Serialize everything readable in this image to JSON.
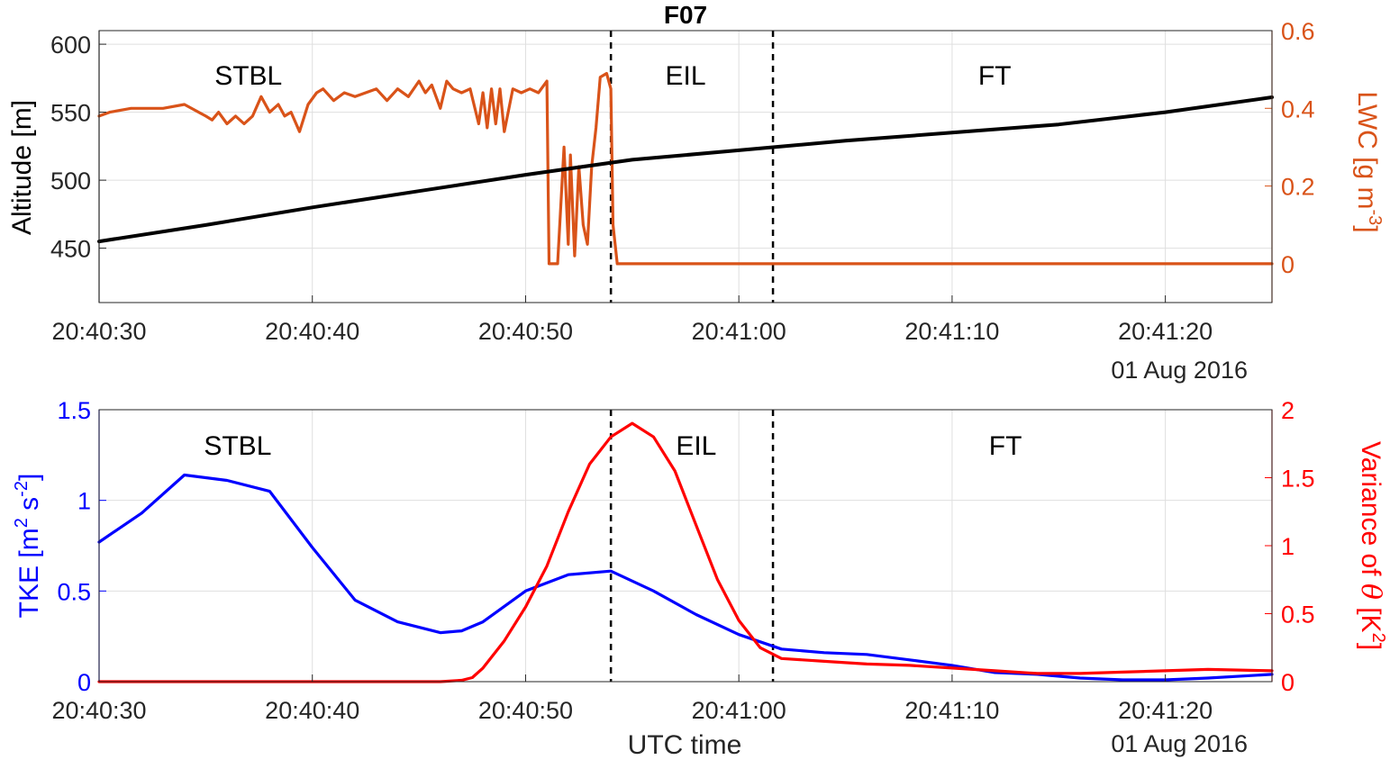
{
  "title": "F07",
  "chart_data": [
    {
      "type": "line",
      "x_ticks": [
        "20:40:30",
        "20:40:40",
        "20:40:50",
        "20:41:00",
        "20:41:10",
        "20:41:20"
      ],
      "date_label": "01 Aug 2016",
      "xlim": [
        "20:40:30",
        "20:41:25"
      ],
      "ylabel_left": "Altitude [m]",
      "ylim_left": [
        410,
        610
      ],
      "yticks_left": [
        450,
        500,
        550,
        600
      ],
      "ylabel_right": "LWC [g m-3]",
      "ylabel_right_base": "LWC [g m",
      "ylabel_right_sup": "-3",
      "ylabel_right_end": "]",
      "ylim_right": [
        -0.1,
        0.6
      ],
      "yticks_right": [
        0,
        0.2,
        0.4,
        0.6
      ],
      "grid": true,
      "colors": {
        "altitude": "#000000",
        "lwc": "#d95319"
      },
      "regions": [
        {
          "label": "STBL",
          "center": "20:40:37"
        },
        {
          "label": "EIL",
          "center": "20:40:57.5"
        },
        {
          "label": "FT",
          "center": "20:41:12"
        }
      ],
      "boundaries": [
        "20:40:54",
        "20:41:01.6"
      ],
      "series": [
        {
          "axis": "left",
          "x": [
            "20:40:30",
            "20:40:35",
            "20:40:40",
            "20:40:45",
            "20:40:50",
            "20:40:55",
            "20:41:00",
            "20:41:05",
            "20:41:10",
            "20:41:15",
            "20:41:20",
            "20:41:25"
          ],
          "values": [
            455,
            467,
            480,
            492,
            504,
            515,
            522,
            529,
            535,
            541,
            550,
            561
          ]
        },
        {
          "axis": "right",
          "x": [
            "20:40:30",
            "20:40:30.5",
            "20:40:31.5",
            "20:40:33",
            "20:40:34",
            "20:40:35",
            "20:40:35.3",
            "20:40:35.6",
            "20:40:36",
            "20:40:36.4",
            "20:40:36.8",
            "20:40:37.2",
            "20:40:37.6",
            "20:40:38",
            "20:40:38.4",
            "20:40:38.7",
            "20:40:39",
            "20:40:39.4",
            "20:40:39.8",
            "20:40:40.2",
            "20:40:40.5",
            "20:40:41",
            "20:40:41.5",
            "20:40:42",
            "20:40:42.5",
            "20:40:43",
            "20:40:43.5",
            "20:40:44",
            "20:40:44.5",
            "20:40:45",
            "20:40:45.3",
            "20:40:45.6",
            "20:40:46",
            "20:40:46.3",
            "20:40:46.6",
            "20:40:47",
            "20:40:47.4",
            "20:40:47.8",
            "20:40:48",
            "20:40:48.2",
            "20:40:48.4",
            "20:40:48.6",
            "20:40:48.8",
            "20:40:49",
            "20:40:49.4",
            "20:40:49.8",
            "20:40:50.2",
            "20:40:50.6",
            "20:40:51",
            "20:40:51.1",
            "20:40:51.3",
            "20:40:51.5",
            "20:40:51.8",
            "20:40:52",
            "20:40:52.1",
            "20:40:52.3",
            "20:40:52.5",
            "20:40:52.7",
            "20:40:52.9",
            "20:40:53.1",
            "20:40:53.3",
            "20:40:53.5",
            "20:40:53.8",
            "20:40:54",
            "20:40:54.1",
            "20:40:54.3",
            "20:41:00",
            "20:41:10",
            "20:41:20",
            "20:41:25"
          ],
          "values": [
            0.38,
            0.39,
            0.4,
            0.4,
            0.41,
            0.38,
            0.37,
            0.39,
            0.36,
            0.38,
            0.36,
            0.38,
            0.43,
            0.39,
            0.41,
            0.38,
            0.39,
            0.34,
            0.41,
            0.44,
            0.45,
            0.42,
            0.44,
            0.43,
            0.44,
            0.45,
            0.42,
            0.45,
            0.43,
            0.47,
            0.44,
            0.46,
            0.4,
            0.47,
            0.45,
            0.44,
            0.45,
            0.36,
            0.44,
            0.35,
            0.45,
            0.36,
            0.45,
            0.34,
            0.45,
            0.44,
            0.45,
            0.44,
            0.47,
            0.0,
            0.0,
            0.0,
            0.3,
            0.05,
            0.28,
            0.02,
            0.25,
            0.1,
            0.05,
            0.25,
            0.35,
            0.48,
            0.49,
            0.45,
            0.1,
            0.0,
            0.0,
            0.0,
            0.0,
            0.0
          ]
        }
      ]
    },
    {
      "type": "line",
      "x_ticks": [
        "20:40:30",
        "20:40:40",
        "20:40:50",
        "20:41:00",
        "20:41:10",
        "20:41:20"
      ],
      "xlabel": "UTC time",
      "date_label": "01 Aug 2016",
      "xlim": [
        "20:40:30",
        "20:41:25"
      ],
      "ylabel_left": "TKE [m2 s-2]",
      "ylabel_left_parts": [
        "TKE [m",
        "2",
        " s",
        "-2",
        "]"
      ],
      "ylim_left": [
        0,
        1.5
      ],
      "yticks_left": [
        0,
        0.5,
        1,
        1.5
      ],
      "ylabel_right": "Variance of θ [K2]",
      "ylabel_right_parts": [
        "Variance of ",
        "θ",
        " [K",
        "2",
        "]"
      ],
      "ylim_right": [
        0,
        2
      ],
      "yticks_right": [
        0,
        0.5,
        1,
        1.5,
        2
      ],
      "grid": true,
      "colors": {
        "tke": "#0000ff",
        "theta": "#ff0000"
      },
      "regions": [
        {
          "label": "STBL",
          "center": "20:40:36.5"
        },
        {
          "label": "EIL",
          "center": "20:40:58"
        },
        {
          "label": "FT",
          "center": "20:41:12.5"
        }
      ],
      "boundaries": [
        "20:40:54",
        "20:41:01.6"
      ],
      "series": [
        {
          "axis": "left",
          "x": [
            "20:40:30",
            "20:40:32",
            "20:40:34",
            "20:40:36",
            "20:40:38",
            "20:40:40",
            "20:40:42",
            "20:40:44",
            "20:40:46",
            "20:40:47",
            "20:40:48",
            "20:40:50",
            "20:40:52",
            "20:40:54",
            "20:40:56",
            "20:40:58",
            "20:41:00",
            "20:41:02",
            "20:41:04",
            "20:41:06",
            "20:41:08",
            "20:41:10",
            "20:41:12",
            "20:41:14",
            "20:41:16",
            "20:41:18",
            "20:41:20",
            "20:41:22",
            "20:41:25"
          ],
          "values": [
            0.77,
            0.93,
            1.14,
            1.11,
            1.05,
            0.74,
            0.45,
            0.33,
            0.27,
            0.28,
            0.33,
            0.5,
            0.59,
            0.61,
            0.5,
            0.37,
            0.26,
            0.18,
            0.16,
            0.15,
            0.12,
            0.09,
            0.05,
            0.04,
            0.02,
            0.01,
            0.01,
            0.02,
            0.04
          ]
        },
        {
          "axis": "right",
          "x": [
            "20:40:30",
            "20:40:40",
            "20:40:46",
            "20:40:47",
            "20:40:47.5",
            "20:40:48",
            "20:40:49",
            "20:40:50",
            "20:40:51",
            "20:40:52",
            "20:40:53",
            "20:40:54",
            "20:40:55",
            "20:40:56",
            "20:40:57",
            "20:40:58",
            "20:40:59",
            "20:41:00",
            "20:41:01",
            "20:41:02",
            "20:41:04",
            "20:41:06",
            "20:41:08",
            "20:41:10",
            "20:41:12",
            "20:41:14",
            "20:41:16",
            "20:41:18",
            "20:41:20",
            "20:41:22",
            "20:41:25"
          ],
          "values": [
            0.0,
            0.0,
            0.0,
            0.01,
            0.03,
            0.1,
            0.3,
            0.55,
            0.85,
            1.25,
            1.6,
            1.8,
            1.9,
            1.8,
            1.55,
            1.15,
            0.75,
            0.45,
            0.25,
            0.17,
            0.15,
            0.13,
            0.12,
            0.1,
            0.08,
            0.06,
            0.06,
            0.07,
            0.08,
            0.09,
            0.08
          ]
        }
      ]
    }
  ]
}
